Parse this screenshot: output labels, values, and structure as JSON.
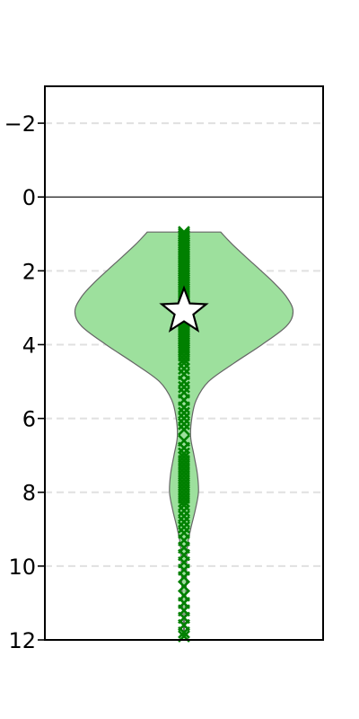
{
  "chart_data": {
    "type": "violin",
    "title": "",
    "xlabel": "",
    "ylabel": "",
    "y_inverted": true,
    "ylim": [
      12,
      -3
    ],
    "yticks": [
      {
        "value": -2,
        "label": "−2"
      },
      {
        "value": 0,
        "label": "0"
      },
      {
        "value": 2,
        "label": "2"
      },
      {
        "value": 4,
        "label": "4"
      },
      {
        "value": 6,
        "label": "6"
      },
      {
        "value": 8,
        "label": "8"
      },
      {
        "value": 10,
        "label": "10"
      },
      {
        "value": 12,
        "label": "12"
      }
    ],
    "grid": {
      "axis": "y",
      "style": "dashed",
      "color": "#e0e0e0"
    },
    "reference_line": {
      "y": 0,
      "color": "#000000"
    },
    "violin": {
      "fill": "#9de09d",
      "edge": "#666666",
      "data_min": 0.95,
      "data_max": 11.9,
      "density_profile": [
        {
          "y": 0.95,
          "w": 0.33
        },
        {
          "y": 1.3,
          "w": 0.44
        },
        {
          "y": 1.8,
          "w": 0.62
        },
        {
          "y": 2.3,
          "w": 0.8
        },
        {
          "y": 2.7,
          "w": 0.92
        },
        {
          "y": 3.1,
          "w": 0.98
        },
        {
          "y": 3.5,
          "w": 0.92
        },
        {
          "y": 4.0,
          "w": 0.7
        },
        {
          "y": 4.5,
          "w": 0.45
        },
        {
          "y": 5.0,
          "w": 0.22
        },
        {
          "y": 5.5,
          "w": 0.11
        },
        {
          "y": 6.0,
          "w": 0.07
        },
        {
          "y": 6.5,
          "w": 0.06
        },
        {
          "y": 7.0,
          "w": 0.09
        },
        {
          "y": 7.5,
          "w": 0.12
        },
        {
          "y": 8.0,
          "w": 0.13
        },
        {
          "y": 8.5,
          "w": 0.1
        },
        {
          "y": 9.0,
          "w": 0.06
        },
        {
          "y": 9.5,
          "w": 0.03
        },
        {
          "y": 10.5,
          "w": 0.02
        },
        {
          "y": 11.9,
          "w": 0.0
        }
      ]
    },
    "points": {
      "marker": "x",
      "color": "#008000",
      "y": [
        0.95,
        1.0,
        1.05,
        1.1,
        1.15,
        1.2,
        1.25,
        1.3,
        1.35,
        1.4,
        1.45,
        1.5,
        1.55,
        1.6,
        1.65,
        1.7,
        1.75,
        1.8,
        1.85,
        1.9,
        1.95,
        2.0,
        2.05,
        2.1,
        2.15,
        2.2,
        2.25,
        2.3,
        2.35,
        2.4,
        2.45,
        2.5,
        2.55,
        2.6,
        2.65,
        2.7,
        2.75,
        2.8,
        2.85,
        2.9,
        2.95,
        3.0,
        3.05,
        3.1,
        3.15,
        3.2,
        3.25,
        3.3,
        3.35,
        3.4,
        3.45,
        3.5,
        3.55,
        3.6,
        3.65,
        3.7,
        3.75,
        3.8,
        3.85,
        3.9,
        3.95,
        4.0,
        4.05,
        4.1,
        4.15,
        4.2,
        4.3,
        4.4,
        4.5,
        4.65,
        4.8,
        5.0,
        5.15,
        5.3,
        5.5,
        5.7,
        5.85,
        6.0,
        6.15,
        6.3,
        6.6,
        6.8,
        6.95,
        7.05,
        7.15,
        7.25,
        7.35,
        7.45,
        7.55,
        7.65,
        7.75,
        7.85,
        7.95,
        8.05,
        8.15,
        8.25,
        8.35,
        8.5,
        8.65,
        8.8,
        8.95,
        9.1,
        9.3,
        9.5,
        9.7,
        9.9,
        10.1,
        10.3,
        10.55,
        10.8,
        11.0,
        11.2,
        11.4,
        11.6,
        11.8,
        11.9
      ]
    },
    "mean_marker": {
      "y": 3.1,
      "shape": "star",
      "fill": "#ffffff",
      "edge": "#000000"
    }
  }
}
